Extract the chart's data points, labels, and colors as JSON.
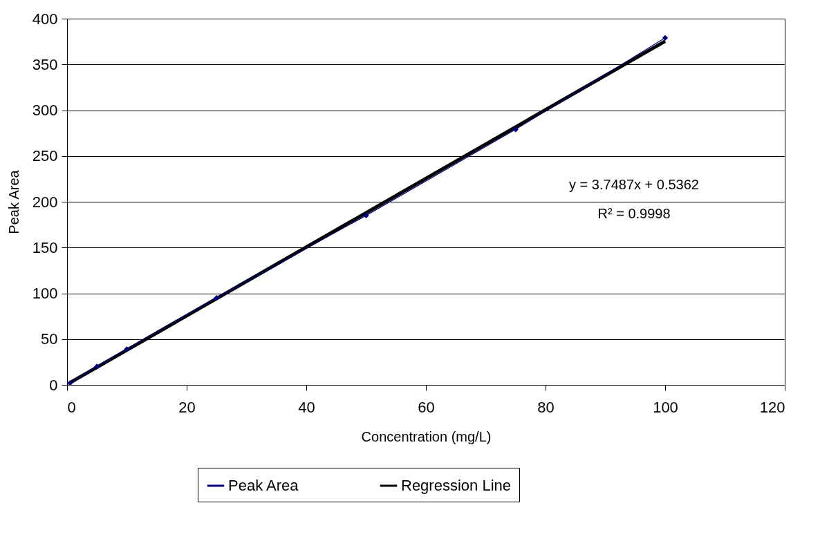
{
  "chart_data": {
    "type": "line",
    "xlabel": "Concentration (mg/L)",
    "ylabel": "Peak Area",
    "x": [
      0.5,
      5,
      10,
      25,
      50,
      75,
      100
    ],
    "series": [
      {
        "name": "Peak Area",
        "color": "#000080",
        "values": [
          2,
          20,
          39,
          95,
          185,
          279,
          379
        ],
        "marker": "diamond"
      },
      {
        "name": "Regression Line",
        "color": "#000000",
        "type": "line",
        "x": [
          0.5,
          100
        ],
        "values": [
          2.4,
          375.4
        ],
        "marker": "none"
      }
    ],
    "xlim": [
      0,
      120
    ],
    "xticks": [
      0,
      20,
      40,
      60,
      80,
      100,
      120
    ],
    "ylim": [
      0,
      400
    ],
    "yticks": [
      0,
      50,
      100,
      150,
      200,
      250,
      300,
      350,
      400
    ],
    "grid": "y",
    "legend": "bottom",
    "annotations": [
      "y = 3.7487x + 0.5362",
      "R² = 0.9998"
    ]
  }
}
